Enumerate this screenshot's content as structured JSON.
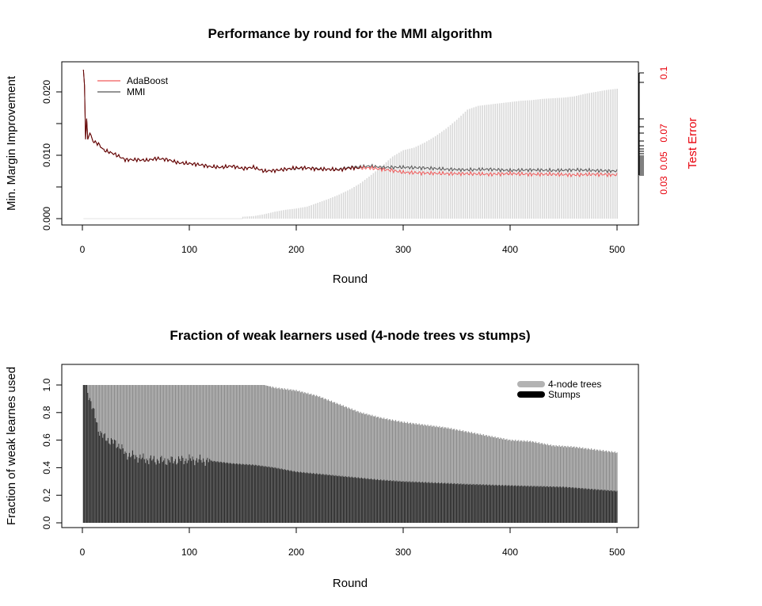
{
  "colors": {
    "adaboost": "#f05a5a",
    "mmi": "#555555",
    "overlay_line": "#5a0000",
    "bars_top": "#d9d9d9",
    "stumps": "#2b2b2b",
    "trees": "#8c8c8c",
    "trees_legend": "#b3b3b3",
    "stumps_legend": "#000000",
    "right_axis": "#e8000b"
  },
  "chart_data": [
    {
      "type": "line",
      "title": "Performance by round for the MMI algorithm",
      "xlabel": "Round",
      "ylabel": "Min. Margin Improvement",
      "ylabel_right": "Test Error",
      "xlim": [
        0,
        500
      ],
      "ylim": [
        0,
        0.023
      ],
      "x_ticks": [
        "0",
        "100",
        "200",
        "300",
        "400",
        "500"
      ],
      "y_ticks": [
        "0.000",
        "0.010",
        "0.020"
      ],
      "y_right_ticks": [
        "0.03",
        "0.05",
        "0.07",
        "0.1"
      ],
      "legend_position": "top-left",
      "series": [
        {
          "name": "AdaBoost",
          "x": [
            1,
            2,
            3,
            4,
            5,
            7,
            10,
            15,
            20,
            30,
            40,
            50,
            60,
            70,
            80,
            90,
            100,
            110,
            120,
            130,
            140,
            150,
            160,
            170,
            180,
            190,
            200,
            210,
            220,
            230,
            240,
            250,
            260,
            270,
            280,
            290,
            300,
            320,
            340,
            360,
            380,
            400,
            420,
            440,
            460,
            480,
            500
          ],
          "values": [
            0.0235,
            0.021,
            0.0125,
            0.0158,
            0.0125,
            0.0135,
            0.0122,
            0.0118,
            0.0108,
            0.0102,
            0.0093,
            0.0093,
            0.0092,
            0.0095,
            0.0093,
            0.0088,
            0.0087,
            0.0085,
            0.0082,
            0.0081,
            0.0083,
            0.0079,
            0.0081,
            0.0075,
            0.0076,
            0.0078,
            0.008,
            0.008,
            0.0078,
            0.0078,
            0.0077,
            0.008,
            0.008,
            0.008,
            0.0078,
            0.0076,
            0.0073,
            0.0072,
            0.0071,
            0.0071,
            0.007,
            0.0071,
            0.007,
            0.007,
            0.0069,
            0.007,
            0.0069
          ]
        },
        {
          "name": "MMI",
          "x": [
            1,
            2,
            3,
            4,
            5,
            7,
            10,
            15,
            20,
            30,
            40,
            50,
            60,
            70,
            80,
            90,
            100,
            110,
            120,
            130,
            140,
            150,
            160,
            170,
            180,
            190,
            200,
            210,
            220,
            230,
            240,
            250,
            260,
            270,
            280,
            290,
            300,
            320,
            340,
            360,
            380,
            400,
            420,
            440,
            460,
            480,
            500
          ],
          "values": [
            0.0235,
            0.021,
            0.0125,
            0.0158,
            0.0125,
            0.0135,
            0.0122,
            0.0118,
            0.0108,
            0.0102,
            0.0093,
            0.0093,
            0.0092,
            0.0095,
            0.0093,
            0.0088,
            0.0087,
            0.0085,
            0.0082,
            0.0081,
            0.0083,
            0.0079,
            0.0081,
            0.0075,
            0.0076,
            0.0078,
            0.0079,
            0.008,
            0.0079,
            0.0078,
            0.0078,
            0.0081,
            0.0082,
            0.0083,
            0.0081,
            0.0081,
            0.0081,
            0.008,
            0.0078,
            0.0077,
            0.0078,
            0.0076,
            0.0077,
            0.0076,
            0.0077,
            0.0076,
            0.0075
          ]
        }
      ],
      "background_bars": {
        "x": [
          150,
          160,
          170,
          180,
          190,
          200,
          210,
          220,
          230,
          240,
          250,
          260,
          270,
          280,
          290,
          300,
          310,
          320,
          330,
          340,
          350,
          360,
          370,
          380,
          390,
          400,
          410,
          420,
          430,
          440,
          450,
          460,
          470,
          480,
          490,
          500
        ],
        "values": [
          0.0003,
          0.0004,
          0.0007,
          0.0011,
          0.0014,
          0.0016,
          0.0019,
          0.0025,
          0.0031,
          0.0038,
          0.0046,
          0.0056,
          0.0069,
          0.0083,
          0.0098,
          0.0108,
          0.0112,
          0.012,
          0.013,
          0.0142,
          0.0156,
          0.0172,
          0.0178,
          0.018,
          0.0182,
          0.0184,
          0.0186,
          0.0187,
          0.0189,
          0.019,
          0.0191,
          0.0193,
          0.0197,
          0.02,
          0.0203,
          0.0205
        ]
      }
    },
    {
      "type": "bar",
      "title": "Fraction of weak learners used (4-node trees vs stumps)",
      "xlabel": "Round",
      "ylabel": "Fraction of weak learnes used",
      "xlim": [
        0,
        500
      ],
      "ylim": [
        0,
        1.1
      ],
      "x_ticks": [
        "0",
        "100",
        "200",
        "300",
        "400",
        "500"
      ],
      "y_ticks": [
        "0.0",
        "0.2",
        "0.4",
        "0.6",
        "0.8",
        "1.0"
      ],
      "legend_position": "top-right",
      "series": [
        {
          "name": "4-node trees",
          "x": [
            1,
            25,
            50,
            100,
            150,
            170,
            180,
            200,
            220,
            240,
            260,
            280,
            300,
            320,
            340,
            360,
            380,
            400,
            420,
            440,
            460,
            480,
            500
          ],
          "values": [
            1.0,
            1.0,
            1.0,
            1.0,
            1.0,
            1.0,
            0.98,
            0.96,
            0.92,
            0.86,
            0.8,
            0.76,
            0.73,
            0.71,
            0.69,
            0.66,
            0.63,
            0.6,
            0.59,
            0.56,
            0.55,
            0.53,
            0.51
          ]
        },
        {
          "name": "Stumps",
          "x": [
            1,
            3,
            5,
            8,
            10,
            15,
            20,
            25,
            30,
            35,
            40,
            50,
            60,
            80,
            100,
            120,
            140,
            160,
            180,
            200,
            240,
            280,
            300,
            360,
            400,
            450,
            500
          ],
          "values": [
            1.0,
            1.0,
            0.95,
            0.88,
            0.82,
            0.68,
            0.62,
            0.6,
            0.58,
            0.56,
            0.5,
            0.48,
            0.46,
            0.45,
            0.46,
            0.45,
            0.43,
            0.42,
            0.4,
            0.37,
            0.34,
            0.31,
            0.3,
            0.28,
            0.27,
            0.26,
            0.23
          ]
        }
      ]
    }
  ]
}
